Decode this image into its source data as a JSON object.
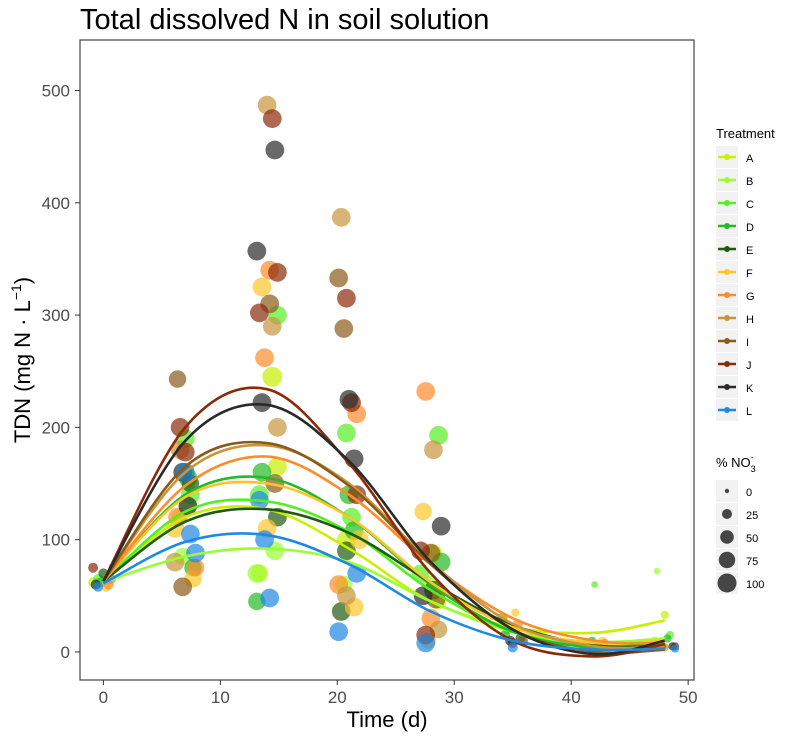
{
  "chart_data": {
    "type": "scatter",
    "title": "Total dissolved N in soil solution",
    "xlabel": "Time (d)",
    "ylabel": "TDN (mg N · L",
    "ylabel_sup": "−1",
    "ylabel_close": ")",
    "xlim": [
      -2,
      50.5
    ],
    "ylim": [
      -25,
      545
    ],
    "xticks": [
      0,
      10,
      20,
      30,
      40,
      50
    ],
    "yticks": [
      0,
      100,
      200,
      300,
      400,
      500
    ],
    "grid": false,
    "legend_placement": "right",
    "legend_title": "Treatment",
    "size_legend_title": "% NO",
    "size_legend_sub": "3",
    "size_legend_sup": "-",
    "size_legend": [
      "0",
      "25",
      "50",
      "75",
      "100"
    ],
    "series": [
      {
        "name": "A",
        "color": "#c8f000",
        "fit": [
          [
            0,
            63
          ],
          [
            7,
            120
          ],
          [
            14,
            127
          ],
          [
            21,
            92
          ],
          [
            28,
            45
          ],
          [
            35,
            22
          ],
          [
            42,
            17
          ],
          [
            48,
            28
          ]
        ],
        "points": [
          [
            0,
            62,
            10
          ],
          [
            7,
            120,
            40
          ],
          [
            7,
            160,
            60
          ],
          [
            14,
            245,
            70
          ],
          [
            14,
            165,
            60
          ],
          [
            14,
            70,
            50
          ],
          [
            21,
            100,
            60
          ],
          [
            28,
            88,
            50
          ],
          [
            28,
            45,
            40
          ],
          [
            35,
            30,
            10
          ],
          [
            42,
            8,
            5
          ],
          [
            48,
            33,
            5
          ]
        ]
      },
      {
        "name": "B",
        "color": "#99ff33",
        "fit": [
          [
            0,
            62
          ],
          [
            7,
            85
          ],
          [
            14,
            92
          ],
          [
            21,
            80
          ],
          [
            28,
            45
          ],
          [
            35,
            18
          ],
          [
            42,
            9
          ],
          [
            48,
            12
          ]
        ],
        "points": [
          [
            0,
            60,
            10
          ],
          [
            7,
            85,
            50
          ],
          [
            7,
            130,
            50
          ],
          [
            14,
            90,
            60
          ],
          [
            14,
            70,
            60
          ],
          [
            21,
            60,
            50
          ],
          [
            28,
            60,
            50
          ],
          [
            35,
            20,
            10
          ],
          [
            42,
            8,
            5
          ],
          [
            48,
            72,
            2
          ]
        ]
      },
      {
        "name": "C",
        "color": "#55ee22",
        "fit": [
          [
            0,
            63
          ],
          [
            7,
            125
          ],
          [
            14,
            134
          ],
          [
            21,
            107
          ],
          [
            28,
            55
          ],
          [
            35,
            18
          ],
          [
            42,
            5
          ],
          [
            48,
            10
          ]
        ],
        "points": [
          [
            0,
            65,
            10
          ],
          [
            7,
            190,
            60
          ],
          [
            7,
            140,
            60
          ],
          [
            14,
            300,
            60
          ],
          [
            14,
            140,
            60
          ],
          [
            21,
            195,
            60
          ],
          [
            21,
            120,
            60
          ],
          [
            28,
            193,
            60
          ],
          [
            28,
            70,
            50
          ],
          [
            35,
            20,
            10
          ],
          [
            42,
            60,
            2
          ],
          [
            48,
            15,
            5
          ]
        ]
      },
      {
        "name": "D",
        "color": "#22bb22",
        "fit": [
          [
            0,
            63
          ],
          [
            7,
            140
          ],
          [
            14,
            155
          ],
          [
            21,
            120
          ],
          [
            28,
            60
          ],
          [
            35,
            18
          ],
          [
            42,
            4
          ],
          [
            48,
            9
          ]
        ],
        "points": [
          [
            0,
            62,
            10
          ],
          [
            7,
            155,
            60
          ],
          [
            7,
            75,
            50
          ],
          [
            14,
            45,
            50
          ],
          [
            14,
            160,
            60
          ],
          [
            21,
            140,
            60
          ],
          [
            21,
            108,
            60
          ],
          [
            28,
            80,
            60
          ],
          [
            35,
            15,
            10
          ],
          [
            42,
            10,
            5
          ],
          [
            48,
            12,
            5
          ]
        ]
      },
      {
        "name": "E",
        "color": "#1e5a0f",
        "fit": [
          [
            0,
            63
          ],
          [
            7,
            116
          ],
          [
            14,
            127
          ],
          [
            21,
            106
          ],
          [
            28,
            62
          ],
          [
            35,
            24
          ],
          [
            42,
            6
          ],
          [
            48,
            5
          ]
        ],
        "points": [
          [
            0,
            70,
            10
          ],
          [
            7,
            150,
            50
          ],
          [
            14,
            120,
            60
          ],
          [
            21,
            36,
            60
          ],
          [
            21,
            90,
            60
          ],
          [
            28,
            55,
            60
          ],
          [
            35,
            12,
            10
          ],
          [
            42,
            5,
            5
          ],
          [
            48,
            8,
            5
          ]
        ]
      },
      {
        "name": "F",
        "color": "#ffc428",
        "fit": [
          [
            0,
            63
          ],
          [
            7,
            138
          ],
          [
            14,
            150
          ],
          [
            21,
            120
          ],
          [
            28,
            62
          ],
          [
            35,
            22
          ],
          [
            42,
            8
          ],
          [
            48,
            10
          ]
        ],
        "points": [
          [
            0,
            58,
            10
          ],
          [
            7,
            65,
            50
          ],
          [
            7,
            110,
            60
          ],
          [
            14,
            325,
            60
          ],
          [
            14,
            110,
            60
          ],
          [
            21,
            40,
            60
          ],
          [
            21,
            100,
            60
          ],
          [
            28,
            125,
            50
          ],
          [
            28,
            10,
            40
          ],
          [
            35,
            35,
            5
          ],
          [
            42,
            10,
            5
          ],
          [
            48,
            10,
            5
          ]
        ]
      },
      {
        "name": "G",
        "color": "#ff8c2a",
        "fit": [
          [
            0,
            63
          ],
          [
            7,
            148
          ],
          [
            14,
            174
          ],
          [
            21,
            140
          ],
          [
            28,
            78
          ],
          [
            35,
            30
          ],
          [
            42,
            10
          ],
          [
            48,
            8
          ]
        ],
        "points": [
          [
            0,
            60,
            10
          ],
          [
            7,
            75,
            50
          ],
          [
            7,
            120,
            60
          ],
          [
            14,
            262,
            60
          ],
          [
            14,
            340,
            60
          ],
          [
            21,
            212,
            60
          ],
          [
            21,
            60,
            60
          ],
          [
            28,
            232,
            60
          ],
          [
            28,
            30,
            60
          ],
          [
            35,
            25,
            10
          ],
          [
            42,
            8,
            5
          ],
          [
            48,
            5,
            5
          ]
        ]
      },
      {
        "name": "H",
        "color": "#c8953c",
        "fit": [
          [
            0,
            63
          ],
          [
            7,
            160
          ],
          [
            14,
            184
          ],
          [
            21,
            150
          ],
          [
            28,
            80
          ],
          [
            35,
            25
          ],
          [
            42,
            5
          ],
          [
            48,
            5
          ]
        ],
        "points": [
          [
            0,
            65,
            10
          ],
          [
            7,
            80,
            60
          ],
          [
            7,
            180,
            60
          ],
          [
            14,
            487,
            60
          ],
          [
            14,
            290,
            60
          ],
          [
            14,
            200,
            60
          ],
          [
            21,
            387,
            60
          ],
          [
            21,
            50,
            60
          ],
          [
            28,
            180,
            60
          ],
          [
            28,
            20,
            50
          ],
          [
            35,
            30,
            10
          ],
          [
            42,
            8,
            5
          ],
          [
            48,
            4,
            5
          ]
        ]
      },
      {
        "name": "I",
        "color": "#8a5a18",
        "fit": [
          [
            0,
            63
          ],
          [
            7,
            165
          ],
          [
            14,
            186
          ],
          [
            21,
            148
          ],
          [
            28,
            78
          ],
          [
            35,
            20
          ],
          [
            42,
            0
          ],
          [
            48,
            2
          ]
        ],
        "points": [
          [
            0,
            75,
            10
          ],
          [
            7,
            243,
            50
          ],
          [
            7,
            58,
            60
          ],
          [
            14,
            310,
            60
          ],
          [
            14,
            150,
            60
          ],
          [
            21,
            333,
            60
          ],
          [
            21,
            288,
            60
          ],
          [
            28,
            88,
            60
          ],
          [
            28,
            47,
            60
          ],
          [
            35,
            10,
            10
          ],
          [
            42,
            5,
            5
          ],
          [
            48,
            5,
            5
          ]
        ]
      },
      {
        "name": "J",
        "color": "#8b2a0a",
        "fit": [
          [
            0,
            63
          ],
          [
            7,
            200
          ],
          [
            14,
            234
          ],
          [
            21,
            168
          ],
          [
            28,
            70
          ],
          [
            35,
            10
          ],
          [
            42,
            -4
          ],
          [
            48,
            7
          ]
        ],
        "points": [
          [
            0,
            75,
            10
          ],
          [
            7,
            200,
            60
          ],
          [
            7,
            178,
            60
          ],
          [
            14,
            475,
            60
          ],
          [
            14,
            338,
            60
          ],
          [
            14,
            302,
            60
          ],
          [
            21,
            315,
            60
          ],
          [
            21,
            222,
            60
          ],
          [
            21,
            140,
            60
          ],
          [
            28,
            90,
            60
          ],
          [
            28,
            15,
            60
          ],
          [
            35,
            8,
            10
          ],
          [
            42,
            5,
            5
          ],
          [
            48,
            5,
            5
          ]
        ]
      },
      {
        "name": "K",
        "color": "#2a2a2a",
        "fit": [
          [
            0,
            63
          ],
          [
            7,
            188
          ],
          [
            14,
            220
          ],
          [
            21,
            170
          ],
          [
            28,
            80
          ],
          [
            35,
            20
          ],
          [
            42,
            -2
          ],
          [
            48,
            10
          ]
        ],
        "points": [
          [
            0,
            60,
            10
          ],
          [
            7,
            160,
            60
          ],
          [
            7,
            130,
            60
          ],
          [
            14,
            447,
            60
          ],
          [
            14,
            357,
            60
          ],
          [
            14,
            222,
            60
          ],
          [
            21,
            225,
            60
          ],
          [
            21,
            172,
            60
          ],
          [
            28,
            112,
            60
          ],
          [
            28,
            50,
            60
          ],
          [
            35,
            10,
            10
          ],
          [
            42,
            5,
            5
          ],
          [
            48,
            5,
            5
          ]
        ]
      },
      {
        "name": "L",
        "color": "#1e88e5",
        "fit": [
          [
            0,
            61
          ],
          [
            7,
            98
          ],
          [
            14,
            104
          ],
          [
            21,
            78
          ],
          [
            28,
            36
          ],
          [
            35,
            10
          ],
          [
            42,
            2
          ],
          [
            48,
            3
          ]
        ],
        "points": [
          [
            0,
            58,
            10
          ],
          [
            7,
            160,
            60
          ],
          [
            7,
            105,
            60
          ],
          [
            7,
            88,
            60
          ],
          [
            14,
            135,
            60
          ],
          [
            14,
            100,
            60
          ],
          [
            14,
            48,
            60
          ],
          [
            21,
            70,
            60
          ],
          [
            21,
            18,
            60
          ],
          [
            28,
            8,
            60
          ],
          [
            35,
            4,
            10
          ],
          [
            42,
            3,
            5
          ],
          [
            48,
            3,
            5
          ]
        ]
      }
    ]
  }
}
